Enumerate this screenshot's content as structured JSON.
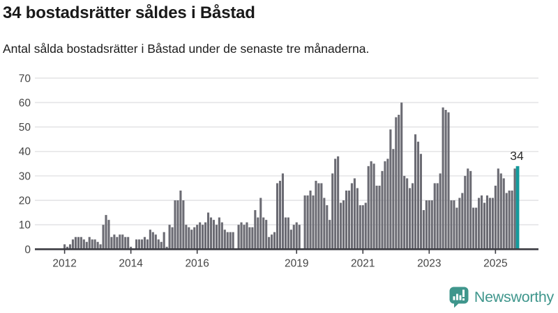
{
  "header": {
    "title": "34 bostadsrätter såldes i Båstad",
    "subtitle": "Antal sålda bostadsrätter i Båstad under de senaste tre månaderna."
  },
  "footer": {
    "brand": "Newsworthy"
  },
  "colors": {
    "bar": "#6b6b73",
    "highlight": "#149a9c",
    "grid": "#e4e4e6",
    "axis": "#3b3b41",
    "tick_label": "#454545",
    "annotation": "#2b2b2b",
    "brand": "#3f968c"
  },
  "chart_data": {
    "type": "bar",
    "title": "34 bostadsrätter såldes i Båstad",
    "subtitle": "Antal sålda bostadsrätter i Båstad under de senaste tre månaderna.",
    "x_start": "2012-01",
    "x_interval": "month",
    "x_tick_labels": [
      "2012",
      "2014",
      "2016",
      "2019",
      "2021",
      "2023",
      "2025"
    ],
    "y_ticks": [
      0,
      10,
      20,
      30,
      40,
      50,
      60,
      70
    ],
    "ylim": [
      0,
      70
    ],
    "grid": "horizontal",
    "legend": "none",
    "annotation": {
      "label": "34",
      "target_index": 164
    },
    "highlight_index": 164,
    "values": [
      2,
      1,
      2,
      4,
      5,
      5,
      5,
      4,
      3,
      5,
      4,
      4,
      3,
      2,
      10,
      14,
      12,
      5,
      6,
      5,
      6,
      6,
      5,
      5,
      1,
      0,
      4,
      4,
      4,
      5,
      4,
      8,
      7,
      6,
      4,
      3,
      7,
      1,
      10,
      9,
      20,
      20,
      24,
      20,
      10,
      9,
      8,
      9,
      10,
      11,
      10,
      11,
      15,
      13,
      12,
      10,
      13,
      11,
      8,
      7,
      7,
      7,
      0,
      10,
      11,
      10,
      11,
      9,
      9,
      16,
      13,
      21,
      13,
      12,
      5,
      6,
      7,
      27,
      28,
      31,
      13,
      13,
      8,
      10,
      11,
      10,
      0,
      22,
      22,
      24,
      22,
      28,
      27,
      27,
      21,
      18,
      12,
      31,
      37,
      38,
      19,
      20,
      24,
      24,
      27,
      29,
      25,
      18,
      18,
      19,
      34,
      36,
      35,
      26,
      26,
      32,
      36,
      37,
      49,
      41,
      54,
      55,
      60,
      30,
      29,
      25,
      27,
      47,
      44,
      39,
      16,
      20,
      20,
      20,
      27,
      27,
      31,
      58,
      57,
      56,
      20,
      20,
      17,
      21,
      23,
      30,
      33,
      32,
      17,
      17,
      21,
      22,
      19,
      22,
      21,
      21,
      26,
      33,
      31,
      29,
      23,
      24,
      24,
      33,
      34
    ]
  }
}
